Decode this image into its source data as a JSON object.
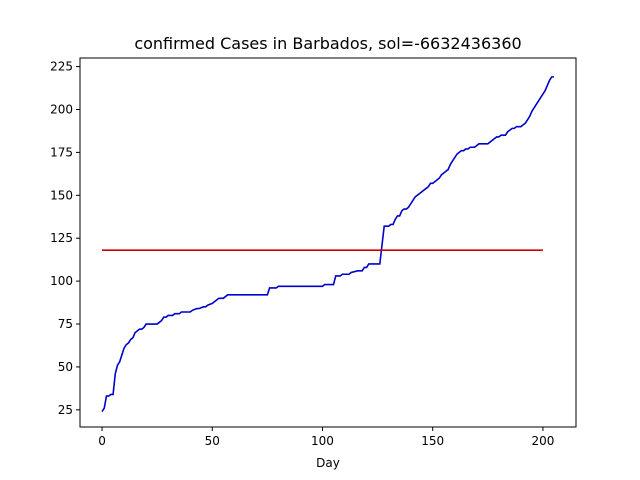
{
  "chart_data": {
    "type": "line",
    "title": "confirmed Cases in Barbados, sol=-6632436360",
    "xlabel": "Day",
    "ylabel": "",
    "xlim": [
      -10,
      215
    ],
    "ylim": [
      15,
      230
    ],
    "xticks": [
      0,
      50,
      100,
      150,
      200
    ],
    "yticks": [
      25,
      50,
      75,
      100,
      125,
      150,
      175,
      200,
      225
    ],
    "grid": false,
    "series": [
      {
        "color": "#0000cc",
        "x": [
          0,
          1,
          2,
          3,
          4,
          5,
          6,
          7,
          8,
          9,
          10,
          11,
          12,
          13,
          14,
          15,
          16,
          17,
          18,
          19,
          20,
          21,
          22,
          25,
          26,
          27,
          28,
          29,
          30,
          32,
          33,
          35,
          36,
          40,
          41,
          43,
          44,
          46,
          47,
          48,
          50,
          52,
          53,
          55,
          56,
          57,
          58,
          75,
          76,
          78,
          79,
          80,
          100,
          101,
          105,
          106,
          107,
          108,
          109,
          110,
          111,
          112,
          113,
          116,
          117,
          118,
          119,
          120,
          121,
          122,
          125,
          126,
          127,
          128,
          129,
          130,
          131,
          132,
          133,
          134,
          135,
          136,
          137,
          138,
          139,
          140,
          141,
          142,
          143,
          144,
          145,
          146,
          147,
          148,
          149,
          150,
          151,
          152,
          153,
          154,
          155,
          156,
          157,
          158,
          159,
          160,
          161,
          162,
          163,
          164,
          165,
          166,
          167,
          168,
          169,
          170,
          171,
          172,
          173,
          174,
          175,
          176,
          177,
          178,
          179,
          180,
          181,
          182,
          183,
          184,
          185,
          186,
          187,
          188,
          189,
          190,
          191,
          192,
          193,
          194,
          195,
          196,
          197,
          198,
          199,
          200,
          201,
          202,
          203,
          204,
          205
        ],
        "values": [
          24,
          26,
          33,
          33,
          34,
          34,
          46,
          51,
          53,
          57,
          61,
          63,
          64,
          66,
          67,
          70,
          71,
          72,
          72,
          73,
          75,
          75,
          75,
          75,
          76,
          77,
          79,
          79,
          80,
          80,
          81,
          81,
          82,
          82,
          83,
          84,
          84,
          85,
          85,
          86,
          87,
          89,
          90,
          90,
          91,
          92,
          92,
          92,
          96,
          96,
          96,
          97,
          97,
          98,
          98,
          103,
          103,
          103,
          104,
          104,
          104,
          104,
          105,
          106,
          106,
          106,
          108,
          108,
          110,
          110,
          110,
          110,
          121,
          132,
          132,
          132,
          133,
          133,
          136,
          138,
          138,
          141,
          142,
          142,
          143,
          145,
          147,
          149,
          150,
          151,
          152,
          153,
          154,
          155,
          157,
          157,
          158,
          159,
          160,
          162,
          163,
          164,
          165,
          168,
          170,
          172,
          174,
          175,
          176,
          176,
          177,
          177,
          178,
          178,
          178,
          179,
          180,
          180,
          180,
          180,
          180,
          181,
          182,
          183,
          184,
          184,
          185,
          185,
          185,
          187,
          188,
          189,
          189,
          190,
          190,
          190,
          191,
          192,
          194,
          196,
          199,
          201,
          203,
          205,
          207,
          209,
          211,
          214,
          217,
          219,
          219
        ]
      },
      {
        "color": "#cc0000",
        "x": [
          0,
          200
        ],
        "values": [
          118,
          118
        ]
      }
    ]
  }
}
